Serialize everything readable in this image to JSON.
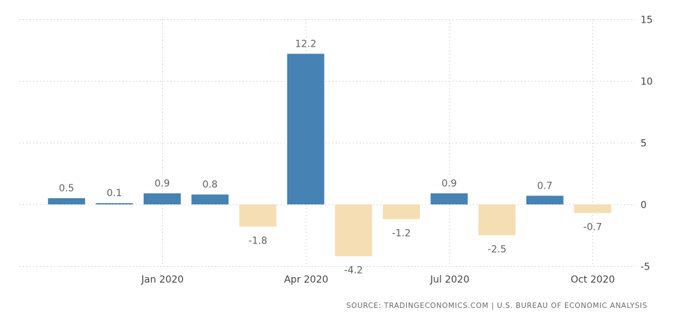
{
  "chart_data": {
    "type": "bar",
    "categories": [
      "2019-11",
      "2019-12",
      "2020-01",
      "2020-02",
      "2020-03",
      "2020-04",
      "2020-05",
      "2020-06",
      "2020-07",
      "2020-08",
      "2020-09",
      "2020-10"
    ],
    "values": [
      0.5,
      0.1,
      0.9,
      0.8,
      -1.8,
      12.2,
      -4.2,
      -1.2,
      0.9,
      -2.5,
      0.7,
      -0.7
    ],
    "value_labels": [
      "0.5",
      "0.1",
      "0.9",
      "0.8",
      "-1.8",
      "12.2",
      "-4.2",
      "-1.2",
      "0.9",
      "-2.5",
      "0.7",
      "-0.7"
    ],
    "ylim": [
      -5,
      15
    ],
    "yticks": [
      15,
      10,
      5,
      0,
      -5
    ],
    "ytick_labels": [
      "15",
      "10",
      "5",
      "0",
      "-5"
    ],
    "xticks": [
      {
        "label": "Jan 2020",
        "at": "2020-01"
      },
      {
        "label": "Apr 2020",
        "at": "2020-04"
      },
      {
        "label": "Jul 2020",
        "at": "2020-07"
      },
      {
        "label": "Oct 2020",
        "at": "2020-10"
      }
    ],
    "grid": true,
    "y_axis_side": "right",
    "colors": {
      "positive": "#4682b4",
      "negative": "#f5deb3"
    }
  },
  "source_text": "SOURCE: TRADINGECONOMICS.COM | U.S. BUREAU OF ECONOMIC ANALYSIS"
}
